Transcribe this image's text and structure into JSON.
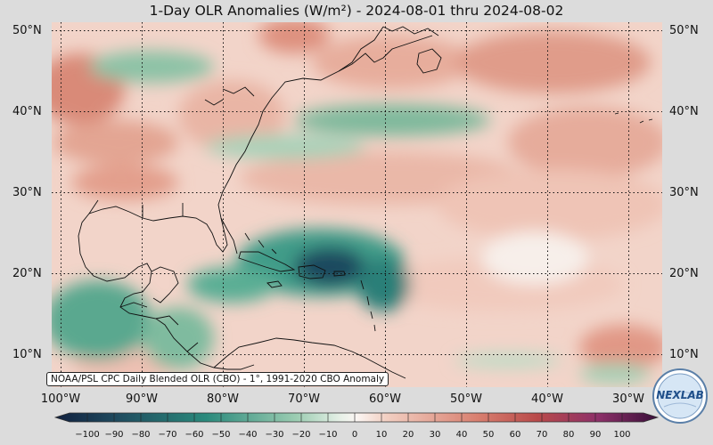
{
  "title": "1-Day OLR Anomalies (W/m²) - 2024-08-01 thru 2024-08-02",
  "source_note": "NOAA/PSL CPC Daily Blended OLR (CBO) - 1°, 1991-2020 CBO Anomaly",
  "logo_text": "NEXLAB",
  "lat_labels": [
    "50°N",
    "40°N",
    "30°N",
    "20°N",
    "10°N"
  ],
  "lon_labels": [
    "100°W",
    "90°W",
    "80°W",
    "70°W",
    "60°W",
    "50°W",
    "40°W",
    "30°W"
  ],
  "colorbar_labels": [
    "−100",
    "−90",
    "−80",
    "−70",
    "−60",
    "−50",
    "−40",
    "−30",
    "−20",
    "−10",
    "0",
    "10",
    "20",
    "30",
    "40",
    "50",
    "60",
    "70",
    "80",
    "90",
    "100"
  ],
  "colors": {
    "neg_strong": "#10203f",
    "neg_mid": "#2a8a7c",
    "neg_light": "#cfe6d6",
    "neutral": "#f7efea",
    "pos_light": "#f2cfc2",
    "pos_mid": "#d98070",
    "pos_strong": "#b94a3e"
  }
}
